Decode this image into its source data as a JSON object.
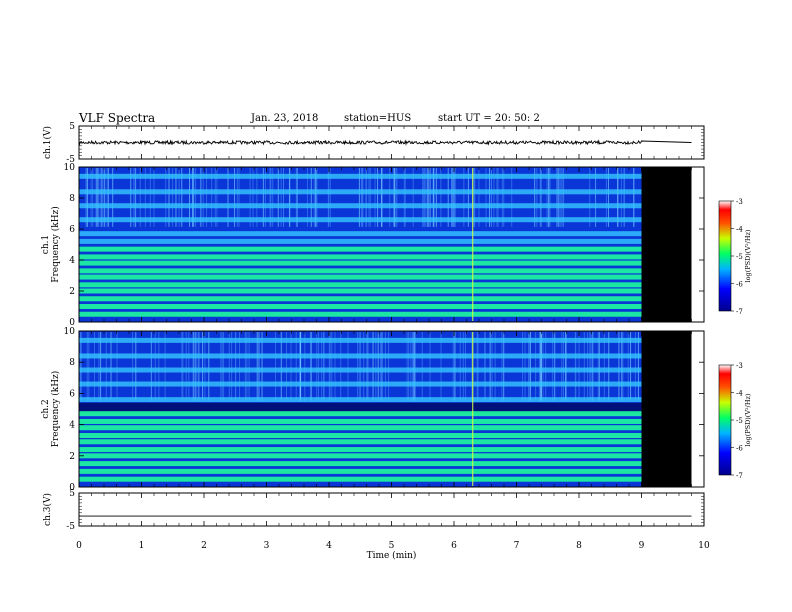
{
  "header": {
    "title": "VLF Spectra",
    "date": "Jan. 23, 2018",
    "station": "station=HUS",
    "start_ut": "start UT =  20: 50: 2"
  },
  "chart_data": [
    {
      "type": "line",
      "panel": "ch1-waveform",
      "ylabel": "ch.1(V)",
      "ylim": [
        -5,
        5
      ],
      "yticks": [
        "5",
        "-5"
      ],
      "xlim": [
        0,
        10
      ],
      "series": [
        {
          "values": [
            {
              "x": 0,
              "y": 0
            },
            {
              "x": 9.0,
              "y": 0
            },
            {
              "x": 9.8,
              "y": 0
            }
          ]
        }
      ],
      "noise_until_min": 9.0
    },
    {
      "type": "heatmap",
      "panel": "ch1-spectrogram",
      "ylabel_line1": "ch.1",
      "ylabel_line2": "Frequency (kHz)",
      "ylim": [
        0,
        10
      ],
      "yticks": [
        "0",
        "2",
        "4",
        "6",
        "8",
        "10"
      ],
      "xlim": [
        0,
        10
      ],
      "data_end_min": 9.0,
      "panel_end_min": 9.8,
      "narrowband_khz": [
        0.5,
        1.0,
        1.5,
        2.0,
        2.4,
        2.9,
        3.3,
        3.8,
        4.2,
        4.7,
        5.2,
        5.7,
        6.6,
        7.5,
        8.4,
        9.4
      ],
      "flash_min": 6.3,
      "colorbar": {
        "label": "log(PSD)(V²/Hz)",
        "ticks": [
          "-3",
          "-4",
          "-5",
          "-6",
          "-7"
        ],
        "range": [
          -7,
          -3
        ]
      }
    },
    {
      "type": "heatmap",
      "panel": "ch2-spectrogram",
      "ylabel_line1": "ch.2",
      "ylabel_line2": "Frequency (kHz)",
      "ylim": [
        0,
        10
      ],
      "yticks": [
        "0",
        "2",
        "4",
        "6",
        "8",
        "10"
      ],
      "xlim": [
        0,
        10
      ],
      "data_end_min": 9.0,
      "panel_end_min": 9.8,
      "narrowband_khz": [
        0.5,
        1.0,
        1.5,
        2.0,
        2.4,
        2.9,
        3.3,
        3.8,
        4.2,
        4.7,
        5.6,
        6.6,
        7.5,
        8.4,
        9.4
      ],
      "flash_min": 6.3,
      "colorbar": {
        "label": "log(PSD)(V²/Hz)",
        "ticks": [
          "-3",
          "-4",
          "-5",
          "-6",
          "-7"
        ],
        "range": [
          -7,
          -3
        ]
      }
    },
    {
      "type": "line",
      "panel": "ch3-waveform",
      "ylabel": "ch.3(V)",
      "ylim": [
        -5,
        5
      ],
      "yticks": [
        "5",
        "-5"
      ],
      "xlim": [
        0,
        10
      ],
      "series": [
        {
          "values": [
            {
              "x": 0,
              "y": -2
            },
            {
              "x": 9.8,
              "y": -2
            }
          ]
        }
      ],
      "xlabel": "Time (min)",
      "xticks": [
        "0",
        "1",
        "2",
        "3",
        "4",
        "5",
        "6",
        "7",
        "8",
        "9",
        "10"
      ]
    }
  ]
}
